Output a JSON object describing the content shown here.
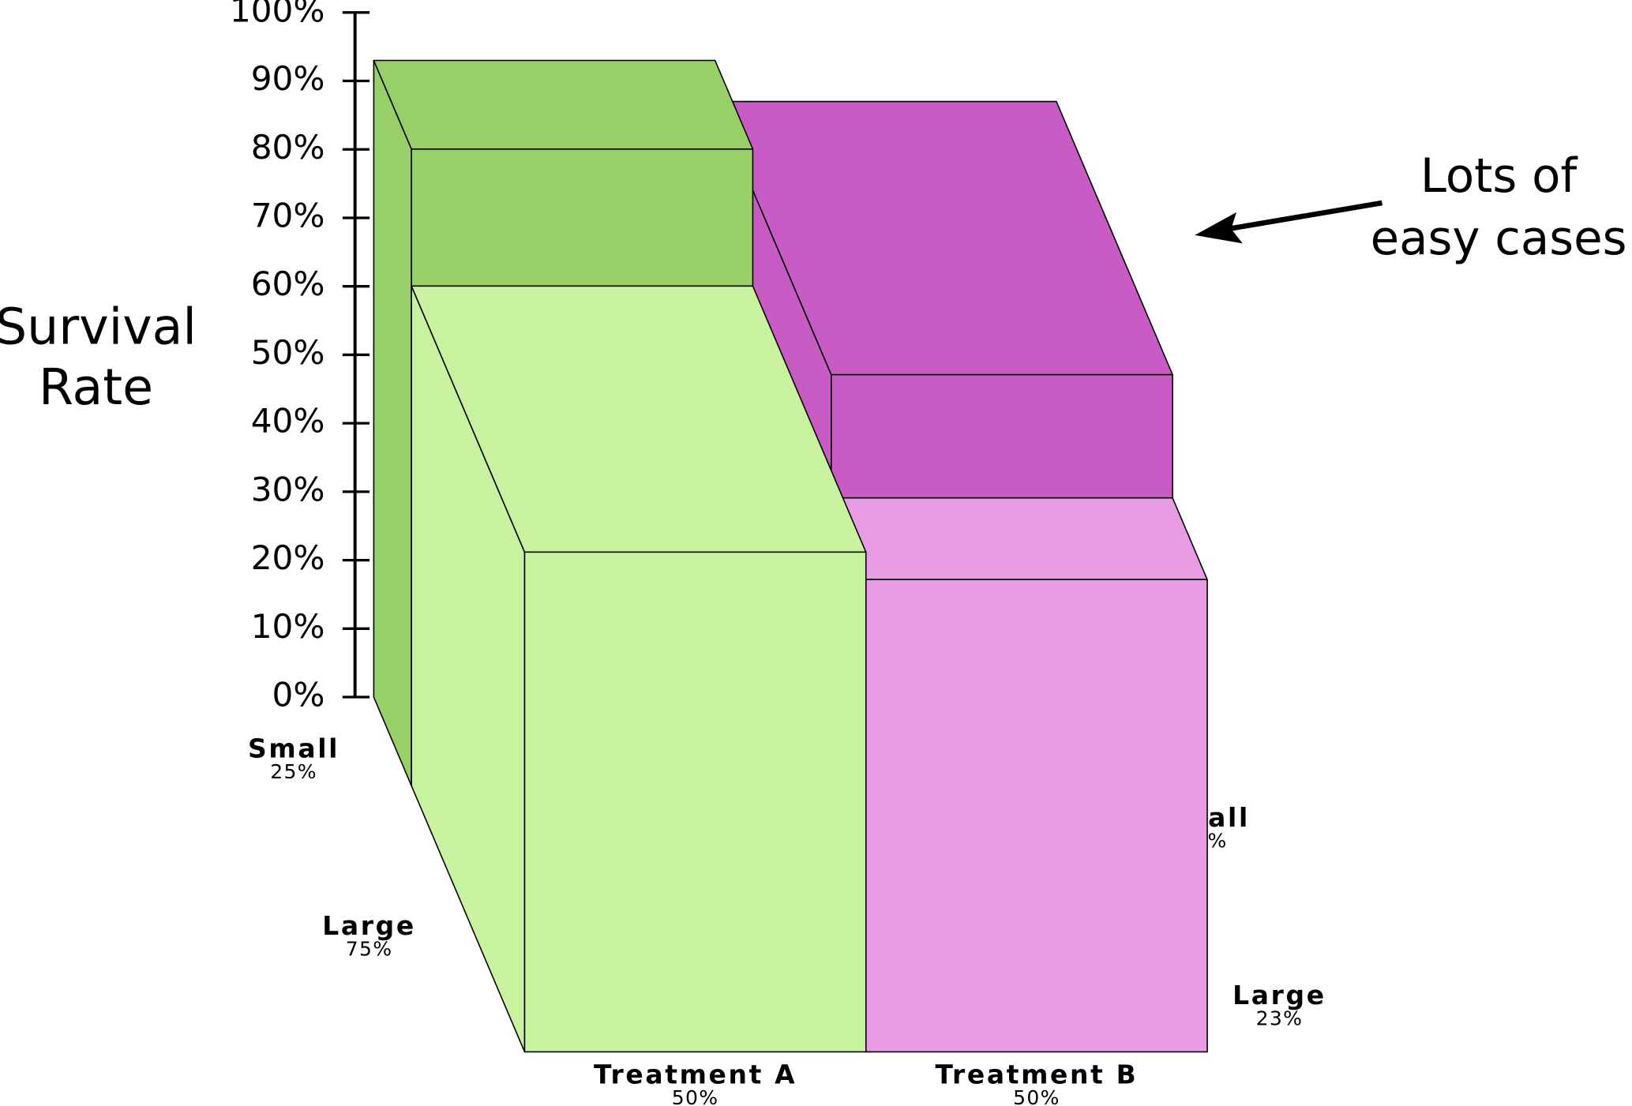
{
  "chart_data": {
    "type": "mosaic3d",
    "ylabel": [
      "Survival",
      "Rate"
    ],
    "annotation": [
      "Lots of",
      "easy cases"
    ],
    "categories": [
      "Treatment A",
      "Treatment B"
    ],
    "category_shares": [
      50,
      50
    ],
    "category_share_labels": [
      "50%",
      "50%"
    ],
    "series": [
      {
        "name": "Small",
        "colors": [
          "#99cf69",
          "#c85bc4"
        ],
        "shares": [
          25,
          77
        ],
        "share_labels": [
          "25%",
          "77%"
        ],
        "values": [
          93,
          87
        ]
      },
      {
        "name": "Large",
        "colors": [
          "#c8f2a0",
          "#e89ce3"
        ],
        "shares": [
          75,
          23
        ],
        "share_labels": [
          "75%",
          "23%"
        ],
        "values": [
          73,
          69
        ]
      }
    ],
    "ylim": [
      0,
      100
    ],
    "yticks": [
      {
        "value": 0,
        "label": "0%"
      },
      {
        "value": 10,
        "label": "10%"
      },
      {
        "value": 20,
        "label": "20%"
      },
      {
        "value": 30,
        "label": "30%"
      },
      {
        "value": 40,
        "label": "40%"
      },
      {
        "value": 50,
        "label": "50%"
      },
      {
        "value": 60,
        "label": "60%"
      },
      {
        "value": 70,
        "label": "70%"
      },
      {
        "value": 80,
        "label": "80%"
      },
      {
        "value": 90,
        "label": "90%"
      },
      {
        "value": 100,
        "label": "100%"
      }
    ]
  }
}
